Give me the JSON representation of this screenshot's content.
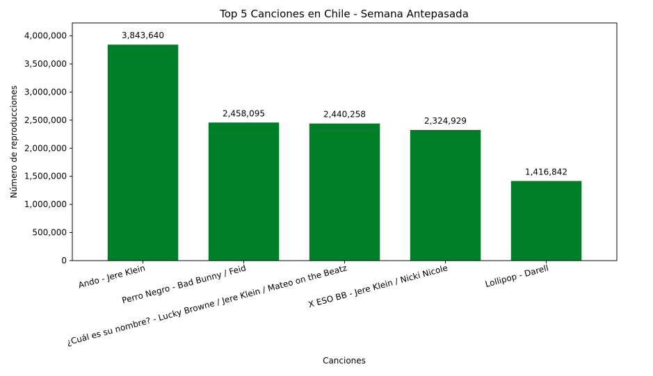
{
  "chart_data": {
    "type": "bar",
    "title": "Top 5 Canciones en Chile - Semana Antepasada",
    "xlabel": "Canciones",
    "ylabel": "Número de reproducciones",
    "categories": [
      "Ando - Jere Klein",
      "Perro Negro - Bad Bunny / Feid",
      "¿Cuál es su nombre? - Lucky Browne / Jere Klein / Mateo on the Beatz",
      "X ESO BB - Jere Klein / Nicki Nicole",
      "Lollipop - Darell"
    ],
    "values": [
      3843640,
      2458095,
      2440258,
      2324929,
      1416842
    ],
    "data_labels": [
      "3,843,640",
      "2,458,095",
      "2,440,258",
      "2,324,929",
      "1,416,842"
    ],
    "ylim": [
      0,
      4230000
    ],
    "yticks": [
      0,
      500000,
      1000000,
      1500000,
      2000000,
      2500000,
      3000000,
      3500000,
      4000000
    ],
    "ytick_labels": [
      "0",
      "500,000",
      "1,000,000",
      "1,500,000",
      "2,000,000",
      "2,500,000",
      "3,000,000",
      "3,500,000",
      "4,000,000"
    ],
    "bar_color": "#007f28",
    "grid": false,
    "legend": false
  }
}
